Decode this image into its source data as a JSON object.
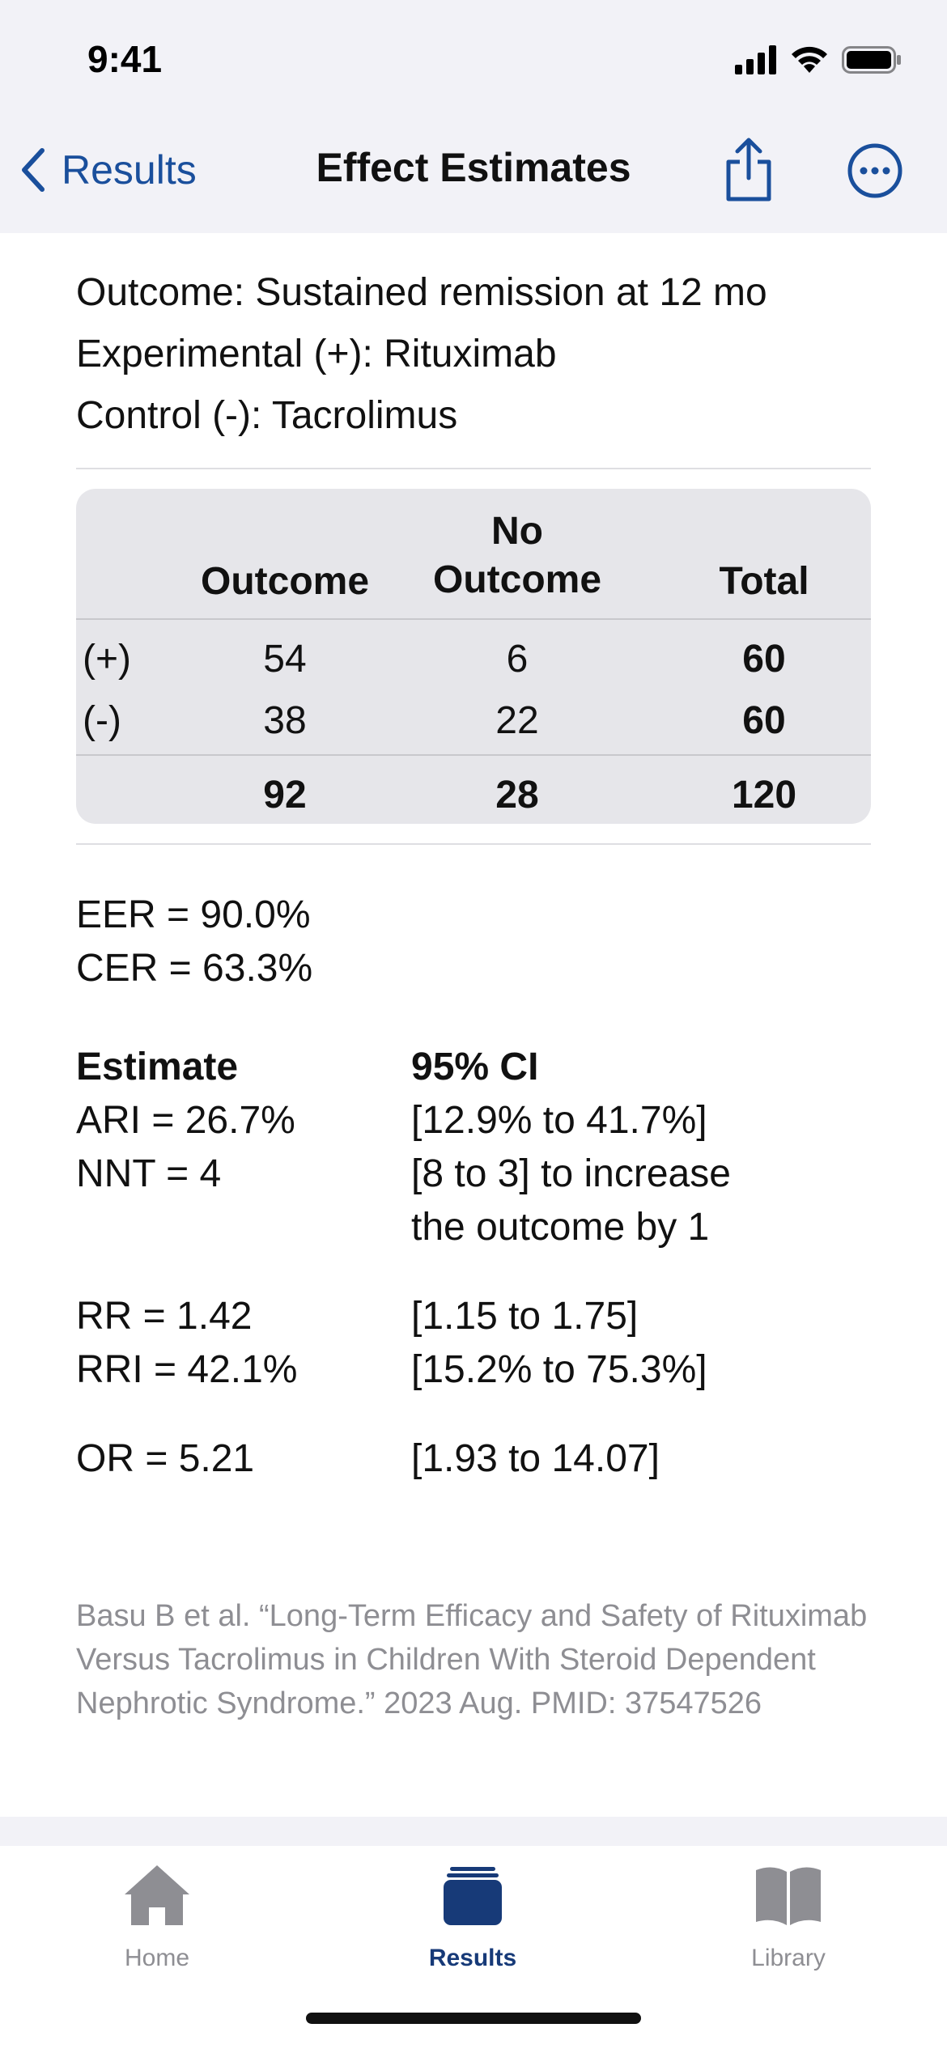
{
  "status_bar": {
    "time": "9:41"
  },
  "nav": {
    "back_label": "Results",
    "title": "Effect Estimates"
  },
  "study": {
    "outcome": "Outcome: Sustained remission at 12 mo",
    "experimental": "Experimental (+): Rituximab",
    "control": "Control (-): Tacrolimus"
  },
  "table": {
    "headers": {
      "outcome": "Outcome",
      "no": "No",
      "no_outcome": "Outcome",
      "total": "Total"
    },
    "rows": [
      {
        "label": "(+)",
        "outcome": "54",
        "no_outcome": "6",
        "total": "60"
      },
      {
        "label": "(-)",
        "outcome": "38",
        "no_outcome": "22",
        "total": "60"
      }
    ],
    "totals": {
      "outcome": "92",
      "no_outcome": "28",
      "total": "120"
    }
  },
  "rates": {
    "eer": "EER = 90.0%",
    "cer": "CER = 63.3%"
  },
  "estimates": {
    "header_estimate": "Estimate",
    "header_ci": "95% CI",
    "ari": "ARI = 26.7%",
    "ari_ci": "[12.9% to 41.7%]",
    "nnt": "NNT = 4",
    "nnt_ci_line1": "[8 to 3] to increase",
    "nnt_ci_line2": "the outcome by 1",
    "rr": "RR = 1.42",
    "rr_ci": "[1.15 to 1.75]",
    "rri": "RRI = 42.1%",
    "rri_ci": "[15.2% to 75.3%]",
    "or": "OR = 5.21",
    "or_ci": "[1.93 to 14.07]"
  },
  "citation": "Basu B et al. “Long-Term Efficacy and Safety of Rituximab Versus Tacrolimus in Children With Steroid Dependent Nephrotic Syndrome.” 2023 Aug. PMID: 37547526",
  "tabbar": {
    "items": [
      {
        "label": "Home",
        "icon": "home-icon",
        "active": false
      },
      {
        "label": "Results",
        "icon": "results-icon",
        "active": true
      },
      {
        "label": "Library",
        "icon": "book-icon",
        "active": false
      }
    ]
  },
  "colors": {
    "accent": "#1a4f9c",
    "tab_active": "#173a78",
    "tab_inactive": "#8e8e93"
  }
}
